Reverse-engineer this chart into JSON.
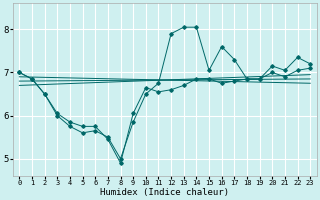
{
  "xlabel": "Humidex (Indice chaleur)",
  "ylabel": "",
  "xlim": [
    -0.5,
    23.5
  ],
  "ylim": [
    4.6,
    8.6
  ],
  "background_color": "#cff0f0",
  "grid_color": "#ffffff",
  "line_color": "#006868",
  "xtick_labels": [
    "0",
    "1",
    "2",
    "3",
    "4",
    "5",
    "6",
    "7",
    "8",
    "9",
    "10",
    "11",
    "12",
    "13",
    "14",
    "15",
    "16",
    "17",
    "18",
    "19",
    "20",
    "21",
    "22",
    "23"
  ],
  "yticks": [
    5,
    6,
    7,
    8
  ],
  "series_main": [
    {
      "x": [
        0,
        1,
        2,
        3,
        4,
        5,
        6,
        7,
        8,
        9,
        10,
        11,
        12,
        13,
        14,
        15,
        16,
        17,
        18,
        19,
        20,
        21,
        22,
        23
      ],
      "y": [
        7.0,
        6.85,
        6.5,
        6.05,
        5.85,
        5.75,
        5.75,
        5.45,
        4.9,
        6.05,
        6.65,
        6.55,
        6.6,
        6.7,
        6.85,
        6.85,
        6.75,
        6.8,
        6.85,
        6.85,
        7.0,
        6.9,
        7.05,
        7.1
      ]
    },
    {
      "x": [
        0,
        1,
        2,
        3,
        4,
        5,
        6,
        7,
        8,
        9,
        10,
        11,
        12,
        13,
        14,
        15,
        16,
        17,
        18,
        19,
        20,
        21,
        22,
        23
      ],
      "y": [
        7.0,
        6.85,
        6.5,
        6.0,
        5.75,
        5.6,
        5.65,
        5.5,
        5.0,
        5.85,
        6.5,
        6.75,
        7.9,
        8.05,
        8.05,
        7.05,
        7.6,
        7.3,
        6.85,
        6.85,
        7.15,
        7.05,
        7.35,
        7.2
      ]
    }
  ],
  "series_lines": [
    {
      "x": [
        0,
        23
      ],
      "y": [
        6.9,
        6.75
      ]
    },
    {
      "x": [
        0,
        23
      ],
      "y": [
        6.8,
        6.85
      ]
    },
    {
      "x": [
        0,
        23
      ],
      "y": [
        6.7,
        6.95
      ]
    }
  ]
}
